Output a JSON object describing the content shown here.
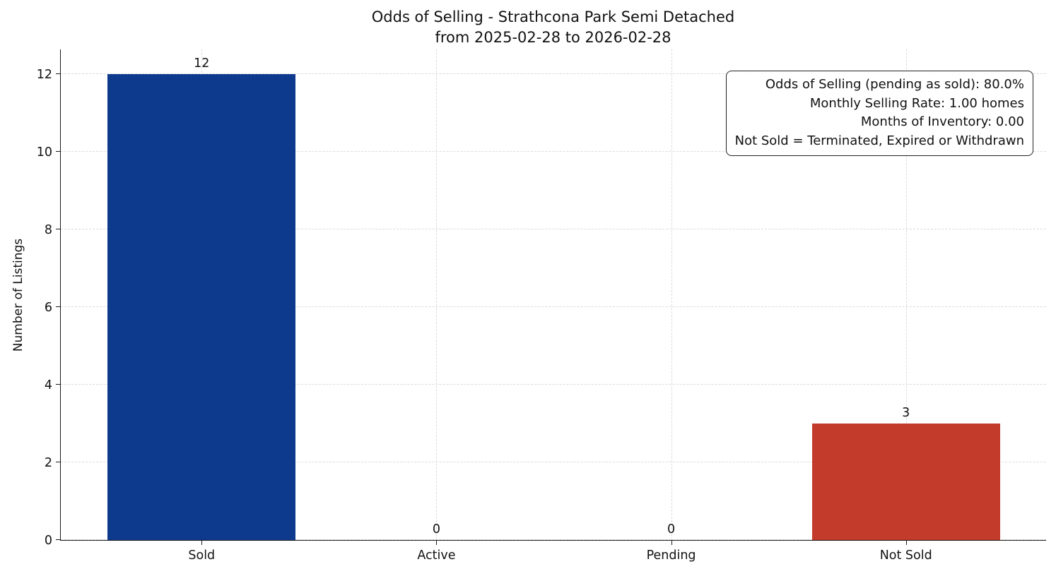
{
  "chart_data": {
    "type": "bar",
    "title": "Odds of Selling - Strathcona Park Semi Detached from 2025-02-28 to 2026-02-28",
    "title_lines": [
      "Odds of Selling - Strathcona Park Semi Detached",
      "from 2025-02-28 to 2026-02-28"
    ],
    "categories": [
      "Sold",
      "Active",
      "Pending",
      "Not Sold"
    ],
    "values": [
      12,
      0,
      0,
      3
    ],
    "bar_colors": [
      "#0e3a8e",
      "#0e3a8e",
      "#0e3a8e",
      "#c23b2b"
    ],
    "xlabel": "",
    "ylabel": "Number of Listings",
    "ylim": [
      0,
      12.65
    ],
    "yticks": [
      0,
      2,
      4,
      6,
      8,
      10,
      12
    ],
    "grid": true,
    "legend": "none",
    "annotation_lines": [
      "Odds of Selling (pending as sold): 80.0%",
      "Monthly Selling Rate: 1.00 homes",
      "Months of Inventory: 0.00",
      "Not Sold = Terminated, Expired or Withdrawn"
    ]
  }
}
